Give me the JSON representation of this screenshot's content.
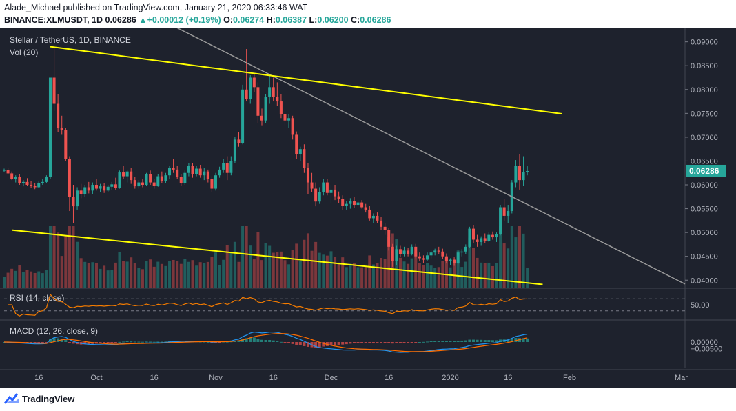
{
  "header": {
    "publisher_line": "Alade_Michael published on TradingView.com, January 21, 2020 06:33:46 WAT",
    "symbol": "BINANCE:XLMUSDT, 1D",
    "last": "0.06286",
    "change": "+0.00012 (+0.19%)",
    "o_label": "O:",
    "o": "0.06274",
    "h_label": "H:",
    "h": "0.06387",
    "l_label": "L:",
    "l": "0.06200",
    "c_label": "C:",
    "c": "0.06286"
  },
  "footer": {
    "brand": "TradingView"
  },
  "chart_data": {
    "type": "candlestick",
    "title": "Stellar / TetherUS, 1D, BINANCE",
    "volume_label": "Vol (20)",
    "rsi_label": "RSI (14, close)",
    "macd_label": "MACD (12, 26, close, 9)",
    "price_ticks": [
      "0.09000",
      "0.08500",
      "0.08000",
      "0.07500",
      "0.07000",
      "0.06500",
      "0.06000",
      "0.05500",
      "0.05000",
      "0.04500",
      "0.04000"
    ],
    "current_price_label": "0.06286",
    "rsi_tick": "50.00",
    "macd_ticks": [
      "0.00000",
      "−0.00500"
    ],
    "x_ticks": [
      "16",
      "Oct",
      "16",
      "Nov",
      "16",
      "Dec",
      "16",
      "2020",
      "16",
      "Feb",
      "Mar"
    ],
    "x_range": [
      "2019-09-07",
      "2020-03-02"
    ],
    "price_range": [
      0.0383,
      0.0927
    ],
    "candles": [
      [
        "2019-09-07",
        0.063,
        0.0634,
        0.0626,
        0.0631
      ],
      [
        "2019-09-08",
        0.0631,
        0.0635,
        0.0622,
        0.0624
      ],
      [
        "2019-09-09",
        0.0624,
        0.0628,
        0.061,
        0.0612
      ],
      [
        "2019-09-10",
        0.0612,
        0.062,
        0.0605,
        0.0617
      ],
      [
        "2019-09-11",
        0.0617,
        0.0622,
        0.06,
        0.0603
      ],
      [
        "2019-09-12",
        0.0603,
        0.061,
        0.0597,
        0.0606
      ],
      [
        "2019-09-13",
        0.0606,
        0.0614,
        0.0598,
        0.06
      ],
      [
        "2019-09-14",
        0.06,
        0.0608,
        0.0594,
        0.0598
      ],
      [
        "2019-09-15",
        0.0598,
        0.0603,
        0.0591,
        0.0595
      ],
      [
        "2019-09-16",
        0.0595,
        0.0607,
        0.0593,
        0.0604
      ],
      [
        "2019-09-17",
        0.0604,
        0.0612,
        0.06,
        0.0606
      ],
      [
        "2019-09-18",
        0.0606,
        0.062,
        0.0604,
        0.0616
      ],
      [
        "2019-09-19",
        0.0616,
        0.0825,
        0.0612,
        0.0825
      ],
      [
        "2019-09-20",
        0.0825,
        0.089,
        0.0755,
        0.077
      ],
      [
        "2019-09-21",
        0.077,
        0.079,
        0.071,
        0.072
      ],
      [
        "2019-09-22",
        0.072,
        0.0745,
        0.0705,
        0.0715
      ],
      [
        "2019-09-23",
        0.0715,
        0.072,
        0.065,
        0.0655
      ],
      [
        "2019-09-24",
        0.0655,
        0.066,
        0.0545,
        0.0575
      ],
      [
        "2019-09-25",
        0.0575,
        0.06,
        0.052,
        0.0555
      ],
      [
        "2019-09-26",
        0.0555,
        0.0595,
        0.0548,
        0.0588
      ],
      [
        "2019-09-27",
        0.0588,
        0.0602,
        0.0572,
        0.058
      ],
      [
        "2019-09-28",
        0.058,
        0.06,
        0.0575,
        0.0595
      ],
      [
        "2019-09-29",
        0.0595,
        0.0606,
        0.0582,
        0.0588
      ],
      [
        "2019-09-30",
        0.0588,
        0.0605,
        0.058,
        0.06
      ],
      [
        "2019-10-01",
        0.06,
        0.0612,
        0.0588,
        0.0592
      ],
      [
        "2019-10-02",
        0.0592,
        0.0602,
        0.0585,
        0.0597
      ],
      [
        "2019-10-03",
        0.0597,
        0.0604,
        0.0583,
        0.0588
      ],
      [
        "2019-10-04",
        0.0588,
        0.06,
        0.0585,
        0.0596
      ],
      [
        "2019-10-05",
        0.0596,
        0.0606,
        0.059,
        0.0601
      ],
      [
        "2019-10-06",
        0.0601,
        0.0615,
        0.059,
        0.0594
      ],
      [
        "2019-10-07",
        0.0594,
        0.063,
        0.0592,
        0.0626
      ],
      [
        "2019-10-08",
        0.0626,
        0.064,
        0.0612,
        0.0618
      ],
      [
        "2019-10-09",
        0.0618,
        0.0632,
        0.0605,
        0.0628
      ],
      [
        "2019-10-10",
        0.0628,
        0.0635,
        0.0602,
        0.061
      ],
      [
        "2019-10-11",
        0.061,
        0.0617,
        0.0592,
        0.0597
      ],
      [
        "2019-10-12",
        0.0597,
        0.061,
        0.0592,
        0.0605
      ],
      [
        "2019-10-13",
        0.0605,
        0.0612,
        0.0595,
        0.06
      ],
      [
        "2019-10-14",
        0.06,
        0.0625,
        0.0598,
        0.0622
      ],
      [
        "2019-10-15",
        0.0622,
        0.063,
        0.06,
        0.0605
      ],
      [
        "2019-10-16",
        0.0605,
        0.0612,
        0.0592,
        0.0598
      ],
      [
        "2019-10-17",
        0.0598,
        0.0622,
        0.0596,
        0.0618
      ],
      [
        "2019-10-18",
        0.0618,
        0.0628,
        0.0604,
        0.0608
      ],
      [
        "2019-10-19",
        0.0608,
        0.0625,
        0.0604,
        0.062
      ],
      [
        "2019-10-20",
        0.062,
        0.064,
        0.0612,
        0.0636
      ],
      [
        "2019-10-21",
        0.0636,
        0.0655,
        0.0625,
        0.0632
      ],
      [
        "2019-10-22",
        0.0632,
        0.064,
        0.0612,
        0.0616
      ],
      [
        "2019-10-23",
        0.0616,
        0.0622,
        0.0598,
        0.0604
      ],
      [
        "2019-10-24",
        0.0604,
        0.063,
        0.06,
        0.0625
      ],
      [
        "2019-10-25",
        0.0625,
        0.0645,
        0.0618,
        0.064
      ],
      [
        "2019-10-26",
        0.064,
        0.0645,
        0.0615,
        0.0622
      ],
      [
        "2019-10-27",
        0.0622,
        0.064,
        0.0618,
        0.0634
      ],
      [
        "2019-10-28",
        0.0634,
        0.0642,
        0.0615,
        0.062
      ],
      [
        "2019-10-29",
        0.062,
        0.0635,
        0.061,
        0.0628
      ],
      [
        "2019-10-30",
        0.0628,
        0.0632,
        0.0605,
        0.0612
      ],
      [
        "2019-10-31",
        0.0612,
        0.0618,
        0.0585,
        0.0592
      ],
      [
        "2019-11-01",
        0.0592,
        0.0625,
        0.0588,
        0.062
      ],
      [
        "2019-11-02",
        0.062,
        0.0638,
        0.0615,
        0.0632
      ],
      [
        "2019-11-03",
        0.0632,
        0.0655,
        0.0625,
        0.0645
      ],
      [
        "2019-11-04",
        0.0645,
        0.066,
        0.061,
        0.0625
      ],
      [
        "2019-11-05",
        0.0625,
        0.066,
        0.062,
        0.065
      ],
      [
        "2019-11-06",
        0.065,
        0.07,
        0.0645,
        0.0695
      ],
      [
        "2019-11-07",
        0.0695,
        0.071,
        0.068,
        0.0688
      ],
      [
        "2019-11-08",
        0.0688,
        0.081,
        0.0685,
        0.08
      ],
      [
        "2019-11-09",
        0.08,
        0.0885,
        0.0775,
        0.078
      ],
      [
        "2019-11-10",
        0.078,
        0.083,
        0.077,
        0.0825
      ],
      [
        "2019-11-11",
        0.0825,
        0.0835,
        0.0795,
        0.0805
      ],
      [
        "2019-11-12",
        0.0805,
        0.0815,
        0.073,
        0.0745
      ],
      [
        "2019-11-13",
        0.0745,
        0.076,
        0.0725,
        0.0735
      ],
      [
        "2019-11-14",
        0.0735,
        0.079,
        0.073,
        0.0785
      ],
      [
        "2019-11-15",
        0.0785,
        0.083,
        0.077,
        0.0805
      ],
      [
        "2019-11-16",
        0.0805,
        0.0825,
        0.0775,
        0.0785
      ],
      [
        "2019-11-17",
        0.0785,
        0.0815,
        0.0765,
        0.0775
      ],
      [
        "2019-11-18",
        0.0775,
        0.079,
        0.074,
        0.0748
      ],
      [
        "2019-11-19",
        0.0748,
        0.076,
        0.0725,
        0.0735
      ],
      [
        "2019-11-20",
        0.0735,
        0.0748,
        0.072,
        0.074
      ],
      [
        "2019-11-21",
        0.074,
        0.0745,
        0.0695,
        0.0705
      ],
      [
        "2019-11-22",
        0.0705,
        0.0712,
        0.0655,
        0.0665
      ],
      [
        "2019-11-23",
        0.0665,
        0.068,
        0.065,
        0.0675
      ],
      [
        "2019-11-24",
        0.0675,
        0.0685,
        0.0625,
        0.0635
      ],
      [
        "2019-11-25",
        0.0635,
        0.0645,
        0.058,
        0.0605
      ],
      [
        "2019-11-26",
        0.0605,
        0.0625,
        0.0585,
        0.0592
      ],
      [
        "2019-11-27",
        0.0592,
        0.0605,
        0.0555,
        0.0565
      ],
      [
        "2019-11-28",
        0.0565,
        0.0595,
        0.056,
        0.0585
      ],
      [
        "2019-11-29",
        0.0585,
        0.0612,
        0.0578,
        0.0605
      ],
      [
        "2019-11-30",
        0.0605,
        0.0612,
        0.0578,
        0.0583
      ],
      [
        "2019-12-01",
        0.0583,
        0.06,
        0.0562,
        0.059
      ],
      [
        "2019-12-02",
        0.059,
        0.06,
        0.0568,
        0.0576
      ],
      [
        "2019-12-03",
        0.0576,
        0.0586,
        0.0562,
        0.057
      ],
      [
        "2019-12-04",
        0.057,
        0.0578,
        0.0548,
        0.0556
      ],
      [
        "2019-12-05",
        0.0556,
        0.0566,
        0.0548,
        0.056
      ],
      [
        "2019-12-06",
        0.056,
        0.0572,
        0.055,
        0.0566
      ],
      [
        "2019-12-07",
        0.0566,
        0.0575,
        0.0552,
        0.0558
      ],
      [
        "2019-12-08",
        0.0558,
        0.0568,
        0.055,
        0.0563
      ],
      [
        "2019-12-09",
        0.0563,
        0.0568,
        0.055,
        0.0553
      ],
      [
        "2019-12-10",
        0.0553,
        0.056,
        0.0542,
        0.0548
      ],
      [
        "2019-12-11",
        0.0548,
        0.0556,
        0.0525,
        0.053
      ],
      [
        "2019-12-12",
        0.053,
        0.054,
        0.052,
        0.0535
      ],
      [
        "2019-12-13",
        0.0535,
        0.0542,
        0.052,
        0.0525
      ],
      [
        "2019-12-14",
        0.0525,
        0.0532,
        0.0505,
        0.0512
      ],
      [
        "2019-12-15",
        0.0512,
        0.052,
        0.0495,
        0.0505
      ],
      [
        "2019-12-16",
        0.0505,
        0.051,
        0.0462,
        0.047
      ],
      [
        "2019-12-17",
        0.047,
        0.0476,
        0.0428,
        0.044
      ],
      [
        "2019-12-18",
        0.044,
        0.0472,
        0.0432,
        0.0465
      ],
      [
        "2019-12-19",
        0.0465,
        0.0472,
        0.0448,
        0.0455
      ],
      [
        "2019-12-20",
        0.0455,
        0.047,
        0.045,
        0.0462
      ],
      [
        "2019-12-21",
        0.0462,
        0.0468,
        0.045,
        0.0455
      ],
      [
        "2019-12-22",
        0.0455,
        0.0475,
        0.0452,
        0.047
      ],
      [
        "2019-12-23",
        0.047,
        0.0476,
        0.0446,
        0.045
      ],
      [
        "2019-12-24",
        0.045,
        0.0458,
        0.044,
        0.0446
      ],
      [
        "2019-12-25",
        0.0446,
        0.0452,
        0.0436,
        0.0443
      ],
      [
        "2019-12-26",
        0.0443,
        0.0458,
        0.044,
        0.0452
      ],
      [
        "2019-12-27",
        0.0452,
        0.0462,
        0.0446,
        0.0458
      ],
      [
        "2019-12-28",
        0.0458,
        0.0466,
        0.0452,
        0.0462
      ],
      [
        "2019-12-29",
        0.0462,
        0.047,
        0.0455,
        0.046
      ],
      [
        "2019-12-30",
        0.046,
        0.0466,
        0.0445,
        0.045
      ],
      [
        "2019-12-31",
        0.045,
        0.0456,
        0.0435,
        0.044
      ],
      [
        "2020-01-01",
        0.044,
        0.0446,
        0.0432,
        0.0443
      ],
      [
        "2020-01-02",
        0.0443,
        0.0448,
        0.043,
        0.0435
      ],
      [
        "2020-01-03",
        0.0435,
        0.0462,
        0.0433,
        0.0458
      ],
      [
        "2020-01-04",
        0.0458,
        0.0465,
        0.045,
        0.046
      ],
      [
        "2020-01-05",
        0.046,
        0.0475,
        0.0455,
        0.047
      ],
      [
        "2020-01-06",
        0.047,
        0.0512,
        0.0468,
        0.0508
      ],
      [
        "2020-01-07",
        0.0508,
        0.0515,
        0.0478,
        0.0485
      ],
      [
        "2020-01-08",
        0.0485,
        0.0495,
        0.047,
        0.048
      ],
      [
        "2020-01-09",
        0.048,
        0.0492,
        0.0472,
        0.0488
      ],
      [
        "2020-01-10",
        0.0488,
        0.0498,
        0.0478,
        0.0482
      ],
      [
        "2020-01-11",
        0.0482,
        0.05,
        0.048,
        0.0495
      ],
      [
        "2020-01-12",
        0.0495,
        0.0502,
        0.0485,
        0.049
      ],
      [
        "2020-01-13",
        0.049,
        0.05,
        0.048,
        0.0496
      ],
      [
        "2020-01-14",
        0.0496,
        0.0558,
        0.0494,
        0.0553
      ],
      [
        "2020-01-15",
        0.0553,
        0.057,
        0.0525,
        0.0535
      ],
      [
        "2020-01-16",
        0.0535,
        0.0558,
        0.052,
        0.0545
      ],
      [
        "2020-01-17",
        0.0545,
        0.061,
        0.054,
        0.0605
      ],
      [
        "2020-01-18",
        0.0605,
        0.0652,
        0.0595,
        0.064
      ],
      [
        "2020-01-19",
        0.064,
        0.0665,
        0.059,
        0.061
      ],
      [
        "2020-01-20",
        0.061,
        0.066,
        0.0598,
        0.0627
      ],
      [
        "2020-01-21",
        0.0627,
        0.0639,
        0.062,
        0.0629
      ]
    ],
    "resistance_line": {
      "from": [
        "2019-09-19",
        0.089
      ],
      "to": [
        "2020-01-30",
        0.0749
      ],
      "color": "#ffff00"
    },
    "support_line": {
      "from": [
        "2019-09-09",
        0.0505
      ],
      "to": [
        "2020-01-25",
        0.0391
      ],
      "color": "#ffff00"
    },
    "descending_trendline": {
      "from": [
        "2019-10-12",
        0.097
      ],
      "to": [
        "2020-03-02",
        0.0392
      ],
      "color": "#9a9a9a"
    },
    "colors": {
      "background": "#1e222d",
      "up": "#26a69a",
      "down": "#ef5350",
      "rsi_line": "#f57c00",
      "macd_line": "#2196f3",
      "signal_line": "#ff6d00",
      "price_label_bg": "#26a69a"
    }
  }
}
